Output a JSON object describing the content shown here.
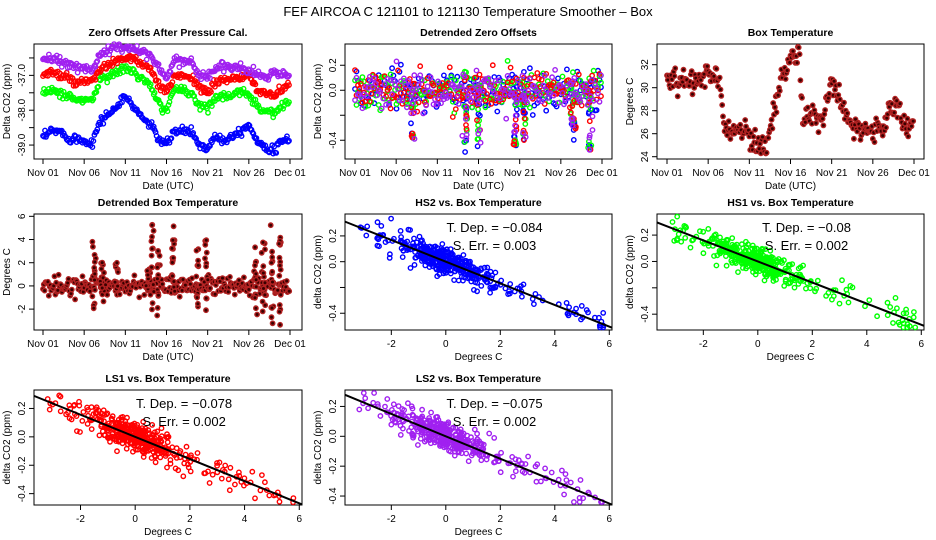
{
  "figure": {
    "title": "FEF   AIRCOA C   121101 to 121130   Temperature Smoother – Box"
  },
  "colors": {
    "HS2": "#0000ff",
    "HS1": "#00ff00",
    "LS1": "#ff0000",
    "LS2": "#a020f0",
    "temperature": "#b22222",
    "fit_line": "#000000"
  },
  "chart_data": [
    {
      "id": "zero-offsets",
      "type": "scatter",
      "title": "Zero Offsets After Pressure Cal.",
      "xlabel": "Date (UTC)",
      "ylabel": "Delta CO2 (ppm)",
      "x_tick_labels": [
        "Nov 01",
        "Nov 06",
        "Nov 11",
        "Nov 16",
        "Nov 21",
        "Nov 26",
        "Dec 01"
      ],
      "x_range_days": [
        0,
        30
      ],
      "y_tick_labels": [
        "-37.0",
        "-38.0",
        "-39.0"
      ],
      "y_ticks": [
        -36.5,
        -37.0,
        -37.5,
        -38.0,
        -38.5,
        -39.0
      ],
      "ylim": [
        -39.4,
        -36.1
      ],
      "series": [
        {
          "name": "LS2",
          "color_key": "LS2",
          "x": [
            0,
            1,
            2,
            3,
            4,
            5,
            6,
            7,
            8,
            9,
            10,
            11,
            12,
            13,
            14,
            15,
            16,
            17,
            18,
            19,
            20,
            21,
            22,
            23,
            24,
            25,
            26,
            27,
            28,
            29,
            30
          ],
          "y": [
            -36.6,
            -36.5,
            -36.6,
            -36.7,
            -36.7,
            -36.8,
            -36.8,
            -36.4,
            -36.3,
            -36.2,
            -36.2,
            -36.2,
            -36.3,
            -36.4,
            -36.8,
            -37.1,
            -36.5,
            -36.6,
            -36.6,
            -37.0,
            -37.0,
            -36.8,
            -36.7,
            -36.8,
            -36.8,
            -36.9,
            -36.9,
            -37.1,
            -36.9,
            -37.0,
            -37.0
          ]
        },
        {
          "name": "LS1",
          "color_key": "LS1",
          "x": [
            0,
            1,
            2,
            3,
            4,
            5,
            6,
            7,
            8,
            9,
            10,
            11,
            12,
            13,
            14,
            15,
            16,
            17,
            18,
            19,
            20,
            21,
            22,
            23,
            24,
            25,
            26,
            27,
            28,
            29,
            30
          ],
          "y": [
            -37.0,
            -36.9,
            -37.0,
            -37.1,
            -37.2,
            -37.2,
            -37.2,
            -36.8,
            -36.7,
            -36.6,
            -36.5,
            -36.5,
            -36.7,
            -36.8,
            -37.3,
            -37.5,
            -37.0,
            -37.0,
            -37.0,
            -37.4,
            -37.5,
            -37.2,
            -37.1,
            -37.1,
            -37.1,
            -37.0,
            -37.4,
            -37.5,
            -37.6,
            -37.4,
            -37.3
          ]
        },
        {
          "name": "HS1",
          "color_key": "HS1",
          "x": [
            0,
            1,
            2,
            3,
            4,
            5,
            6,
            7,
            8,
            9,
            10,
            11,
            12,
            13,
            14,
            15,
            16,
            17,
            18,
            19,
            20,
            21,
            22,
            23,
            24,
            25,
            26,
            27,
            28,
            29,
            30
          ],
          "y": [
            -37.5,
            -37.4,
            -37.5,
            -37.6,
            -37.7,
            -37.7,
            -37.7,
            -37.1,
            -37.0,
            -36.9,
            -36.8,
            -36.9,
            -37.1,
            -37.3,
            -37.8,
            -38.0,
            -37.4,
            -37.4,
            -37.5,
            -37.9,
            -37.9,
            -37.6,
            -37.6,
            -37.6,
            -37.5,
            -37.5,
            -37.9,
            -38.0,
            -38.1,
            -37.9,
            -37.7
          ]
        },
        {
          "name": "HS2",
          "color_key": "HS2",
          "x": [
            0,
            1,
            2,
            3,
            4,
            5,
            6,
            7,
            8,
            9,
            10,
            11,
            12,
            13,
            14,
            15,
            16,
            17,
            18,
            19,
            20,
            21,
            22,
            23,
            24,
            25,
            26,
            27,
            28,
            29,
            30
          ],
          "y": [
            -38.8,
            -38.6,
            -38.6,
            -38.8,
            -38.8,
            -38.9,
            -38.9,
            -38.3,
            -38.1,
            -37.9,
            -37.6,
            -37.9,
            -38.2,
            -38.4,
            -38.8,
            -39.0,
            -38.6,
            -38.6,
            -38.6,
            -39.0,
            -39.1,
            -38.7,
            -38.9,
            -38.7,
            -38.6,
            -38.4,
            -38.9,
            -39.0,
            -39.2,
            -38.9,
            -38.8
          ]
        }
      ]
    },
    {
      "id": "detrended-zero-offsets",
      "type": "scatter",
      "title": "Detrended Zero Offsets",
      "xlabel": "Date (UTC)",
      "ylabel": "Delta CO2 (ppm)",
      "x_tick_labels": [
        "Nov 01",
        "Nov 06",
        "Nov 11",
        "Nov 16",
        "Nov 21",
        "Nov 26",
        "Dec 01"
      ],
      "x_range_days": [
        0,
        30
      ],
      "y_tick_labels": [
        "0.2",
        "0.0",
        "-0.4"
      ],
      "y_ticks": [
        0.2,
        0.0,
        -0.2,
        -0.4
      ],
      "ylim": [
        -0.55,
        0.37
      ],
      "series_order": [
        "HS2",
        "HS1",
        "LS1",
        "LS2"
      ],
      "spread_ppm": 0.08,
      "dips": [
        [
          7,
          -0.42
        ],
        [
          13.5,
          -0.52
        ],
        [
          15,
          -0.45
        ],
        [
          19.5,
          -0.48
        ],
        [
          20.5,
          -0.4
        ],
        [
          26.5,
          -0.4
        ],
        [
          28.5,
          -0.48
        ]
      ]
    },
    {
      "id": "box-temperature",
      "type": "scatter",
      "title": "Box Temperature",
      "xlabel": "Date (UTC)",
      "ylabel": "Degrees C",
      "x_tick_labels": [
        "Nov 01",
        "Nov 06",
        "Nov 11",
        "Nov 16",
        "Nov 21",
        "Nov 26",
        "Dec 01"
      ],
      "x_range_days": [
        0,
        30
      ],
      "y_tick_labels": [
        "24",
        "26",
        "28",
        "30",
        "32"
      ],
      "y_ticks": [
        24,
        26,
        28,
        30,
        32
      ],
      "ylim": [
        23.8,
        33.8
      ],
      "series": [
        {
          "name": "Box Temperature",
          "color_key": "temperature",
          "x": [
            0,
            1,
            2,
            3,
            4,
            5,
            6,
            6.5,
            7,
            8,
            9,
            10,
            11,
            12,
            13,
            14,
            15,
            16,
            16.5,
            17,
            18,
            19,
            20,
            21,
            22,
            23,
            24,
            25,
            26,
            27,
            28,
            29,
            30
          ],
          "y": [
            31,
            30.7,
            30.7,
            30.6,
            30.8,
            30.9,
            30.8,
            30.6,
            26.5,
            26.3,
            26.4,
            26.0,
            25.2,
            24.6,
            28,
            31,
            32.5,
            33.3,
            27.5,
            27.6,
            27.6,
            27.3,
            30.5,
            28.5,
            27,
            26.5,
            26.4,
            26.4,
            26.2,
            28,
            28.5,
            26.5,
            26.8
          ]
        }
      ]
    },
    {
      "id": "detrended-box-temperature",
      "type": "scatter",
      "title": "Detrended Box Temperature",
      "xlabel": "Date (UTC)",
      "ylabel": "Degrees C",
      "x_tick_labels": [
        "Nov 01",
        "Nov 06",
        "Nov 11",
        "Nov 16",
        "Nov 21",
        "Nov 26",
        "Dec 01"
      ],
      "x_range_days": [
        0,
        30
      ],
      "y_tick_labels": [
        "-2",
        "0",
        "2",
        "4",
        "6"
      ],
      "y_ticks": [
        -2,
        0,
        2,
        4,
        6
      ],
      "ylim": [
        -3.8,
        6.2
      ],
      "spikes": [
        [
          6.2,
          4.1,
          -2
        ],
        [
          7.2,
          2.1,
          -1.5
        ],
        [
          9,
          2,
          -0.8
        ],
        [
          12.8,
          2,
          -1
        ],
        [
          13.3,
          5.8,
          -2.7
        ],
        [
          14,
          3.3,
          -2.6
        ],
        [
          15.8,
          5.3,
          -0.5
        ],
        [
          18.8,
          3.5,
          -2
        ],
        [
          19.8,
          4.2,
          -2.2
        ],
        [
          25.8,
          3.5,
          -2.5
        ],
        [
          26.8,
          3.8,
          -3
        ],
        [
          27.8,
          5.3,
          -3.3
        ],
        [
          28.8,
          4.5,
          -3.5
        ]
      ]
    },
    {
      "id": "hs2-vs-box-temperature",
      "type": "scatter",
      "title": "HS2 vs. Box Temperature",
      "xlabel": "Degrees C",
      "ylabel": "delta CO2 (ppm)",
      "color_key": "HS2",
      "x_tick_labels": [
        "-2",
        "0",
        "2",
        "4",
        "6"
      ],
      "x_ticks": [
        -2,
        0,
        2,
        4,
        6
      ],
      "xlim": [
        -3.7,
        6.1
      ],
      "y_tick_labels": [
        "0.2",
        "0.0",
        "-0.4"
      ],
      "y_ticks": [
        0.2,
        0.0,
        -0.2,
        -0.4
      ],
      "ylim": [
        -0.53,
        0.37
      ],
      "slope": -0.084,
      "annotation": [
        "T. Dep. =  −0.084",
        "S. Err. =  0.003"
      ]
    },
    {
      "id": "hs1-vs-box-temperature",
      "type": "scatter",
      "title": "HS1 vs. Box Temperature",
      "xlabel": "Degrees C",
      "ylabel": "delta CO2 (ppm)",
      "color_key": "HS1",
      "x_tick_labels": [
        "-2",
        "0",
        "2",
        "4",
        "6"
      ],
      "x_ticks": [
        -2,
        0,
        2,
        4,
        6
      ],
      "xlim": [
        -3.7,
        6.1
      ],
      "y_tick_labels": [
        "0.2",
        "0.0",
        "-0.4"
      ],
      "y_ticks": [
        0.2,
        0.0,
        -0.2,
        -0.4
      ],
      "ylim": [
        -0.52,
        0.36
      ],
      "slope": -0.08,
      "annotation": [
        "T. Dep. =  −0.08",
        "S. Err. =  0.002"
      ]
    },
    {
      "id": "ls1-vs-box-temperature",
      "type": "scatter",
      "title": "LS1 vs. Box Temperature",
      "xlabel": "Degrees C",
      "ylabel": "delta CO2 (ppm)",
      "color_key": "LS1",
      "x_tick_labels": [
        "-2",
        "0",
        "2",
        "4",
        "6"
      ],
      "x_ticks": [
        -2,
        0,
        2,
        4,
        6
      ],
      "xlim": [
        -3.7,
        6.1
      ],
      "y_tick_labels": [
        "0.2",
        "0.0",
        "-0.2",
        "-0.4"
      ],
      "y_ticks": [
        0.2,
        0.0,
        -0.2,
        -0.4
      ],
      "ylim": [
        -0.48,
        0.33
      ],
      "slope": -0.078,
      "annotation": [
        "T. Dep. =  −0.078",
        "S. Err. =  0.002"
      ]
    },
    {
      "id": "ls2-vs-box-temperature",
      "type": "scatter",
      "title": "LS2 vs. Box Temperature",
      "xlabel": "Degrees C",
      "ylabel": "delta CO2 (ppm)",
      "color_key": "LS2",
      "x_tick_labels": [
        "-2",
        "0",
        "2",
        "4",
        "6"
      ],
      "x_ticks": [
        -2,
        0,
        2,
        4,
        6
      ],
      "xlim": [
        -3.7,
        6.1
      ],
      "y_tick_labels": [
        "0.2",
        "0.0",
        "-0.2",
        "-0.4"
      ],
      "y_ticks": [
        0.2,
        0.0,
        -0.2,
        -0.4
      ],
      "ylim": [
        -0.46,
        0.31
      ],
      "slope": -0.075,
      "annotation": [
        "T. Dep. =  −0.075",
        "S. Err. =  0.002"
      ]
    }
  ]
}
